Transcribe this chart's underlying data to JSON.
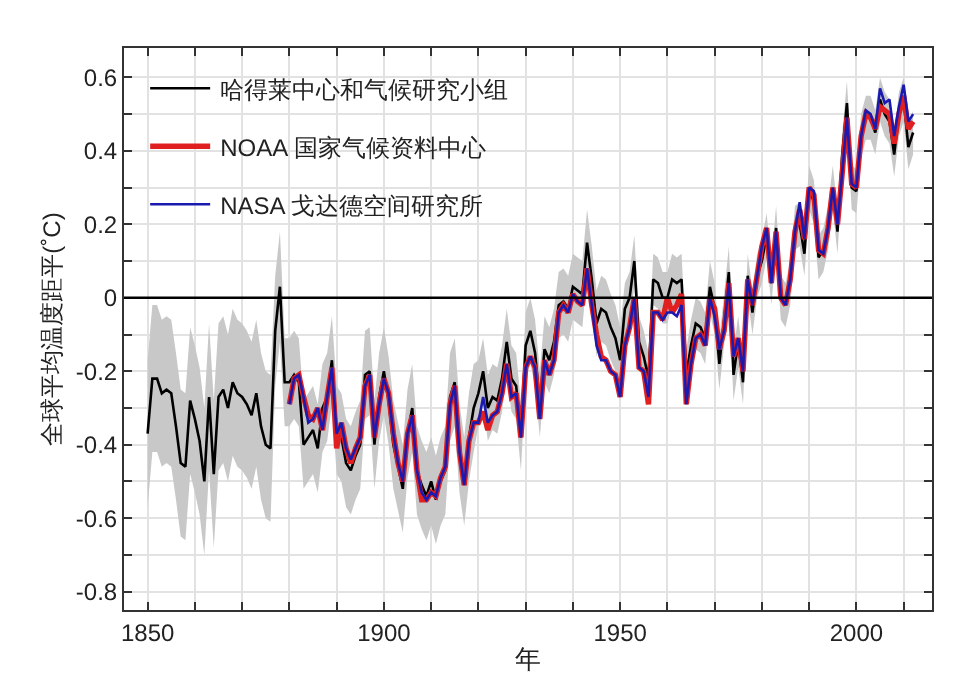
{
  "chart_data": {
    "type": "line",
    "xlabel": "年",
    "ylabel": "全球平均温度距平(˚C)",
    "x": [
      1850,
      1851,
      1852,
      1853,
      1854,
      1855,
      1856,
      1857,
      1858,
      1859,
      1860,
      1861,
      1862,
      1863,
      1864,
      1865,
      1866,
      1867,
      1868,
      1869,
      1870,
      1871,
      1872,
      1873,
      1874,
      1875,
      1876,
      1877,
      1878,
      1879,
      1880,
      1881,
      1882,
      1883,
      1884,
      1885,
      1886,
      1887,
      1888,
      1889,
      1890,
      1891,
      1892,
      1893,
      1894,
      1895,
      1896,
      1897,
      1898,
      1899,
      1900,
      1901,
      1902,
      1903,
      1904,
      1905,
      1906,
      1907,
      1908,
      1909,
      1910,
      1911,
      1912,
      1913,
      1914,
      1915,
      1916,
      1917,
      1918,
      1919,
      1920,
      1921,
      1922,
      1923,
      1924,
      1925,
      1926,
      1927,
      1928,
      1929,
      1930,
      1931,
      1932,
      1933,
      1934,
      1935,
      1936,
      1937,
      1938,
      1939,
      1940,
      1941,
      1942,
      1943,
      1944,
      1945,
      1946,
      1947,
      1948,
      1949,
      1950,
      1951,
      1952,
      1953,
      1954,
      1955,
      1956,
      1957,
      1958,
      1959,
      1960,
      1961,
      1962,
      1963,
      1964,
      1965,
      1966,
      1967,
      1968,
      1969,
      1970,
      1971,
      1972,
      1973,
      1974,
      1975,
      1976,
      1977,
      1978,
      1979,
      1980,
      1981,
      1982,
      1983,
      1984,
      1985,
      1986,
      1987,
      1988,
      1989,
      1990,
      1991,
      1992,
      1993,
      1994,
      1995,
      1996,
      1997,
      1998,
      1999,
      2000,
      2001,
      2002,
      2003,
      2004,
      2005,
      2006,
      2007,
      2008,
      2009,
      2010,
      2011,
      2012
    ],
    "series": [
      {
        "name": "哈得莱中心和气候研究小组",
        "color": "#000000",
        "values": [
          -0.37,
          -0.22,
          -0.22,
          -0.26,
          -0.25,
          -0.26,
          -0.35,
          -0.45,
          -0.46,
          -0.28,
          -0.33,
          -0.39,
          -0.5,
          -0.27,
          -0.48,
          -0.27,
          -0.25,
          -0.3,
          -0.23,
          -0.26,
          -0.27,
          -0.29,
          -0.32,
          -0.26,
          -0.35,
          -0.4,
          -0.41,
          -0.09,
          0.03,
          -0.23,
          -0.23,
          -0.21,
          -0.23,
          -0.4,
          -0.38,
          -0.36,
          -0.41,
          -0.3,
          -0.27,
          -0.17,
          -0.36,
          -0.38,
          -0.45,
          -0.47,
          -0.43,
          -0.4,
          -0.21,
          -0.2,
          -0.4,
          -0.27,
          -0.2,
          -0.28,
          -0.4,
          -0.46,
          -0.52,
          -0.37,
          -0.3,
          -0.47,
          -0.51,
          -0.54,
          -0.5,
          -0.55,
          -0.5,
          -0.47,
          -0.27,
          -0.23,
          -0.41,
          -0.5,
          -0.38,
          -0.3,
          -0.26,
          -0.2,
          -0.3,
          -0.27,
          -0.28,
          -0.22,
          -0.12,
          -0.22,
          -0.24,
          -0.38,
          -0.13,
          -0.09,
          -0.15,
          -0.29,
          -0.14,
          -0.17,
          -0.12,
          -0.02,
          -0.01,
          -0.03,
          0.03,
          0.02,
          0.01,
          0.15,
          0.05,
          -0.07,
          -0.03,
          -0.04,
          -0.08,
          -0.11,
          -0.17,
          -0.03,
          0.0,
          0.1,
          -0.12,
          -0.16,
          -0.22,
          0.05,
          0.04,
          0.0,
          0.0,
          0.05,
          0.04,
          0.05,
          -0.21,
          -0.13,
          -0.07,
          -0.08,
          -0.11,
          0.03,
          -0.03,
          -0.18,
          -0.06,
          0.07,
          -0.21,
          -0.12,
          -0.23,
          0.06,
          -0.04,
          0.06,
          0.1,
          0.17,
          0.04,
          0.19,
          0.0,
          -0.02,
          0.04,
          0.19,
          0.2,
          0.12,
          0.3,
          0.26,
          0.11,
          0.13,
          0.19,
          0.3,
          0.18,
          0.39,
          0.53,
          0.3,
          0.29,
          0.44,
          0.49,
          0.49,
          0.45,
          0.54,
          0.5,
          0.48,
          0.39,
          0.5,
          0.54,
          0.41,
          0.45
        ],
        "lower": [
          -0.57,
          -0.42,
          -0.42,
          -0.46,
          -0.45,
          -0.46,
          -0.55,
          -0.65,
          -0.66,
          -0.48,
          -0.53,
          -0.59,
          -0.7,
          -0.47,
          -0.68,
          -0.47,
          -0.45,
          -0.5,
          -0.43,
          -0.46,
          -0.47,
          -0.49,
          -0.52,
          -0.46,
          -0.55,
          -0.6,
          -0.61,
          -0.24,
          -0.12,
          -0.35,
          -0.35,
          -0.33,
          -0.35,
          -0.52,
          -0.5,
          -0.48,
          -0.53,
          -0.42,
          -0.39,
          -0.29,
          -0.48,
          -0.5,
          -0.57,
          -0.59,
          -0.55,
          -0.52,
          -0.33,
          -0.32,
          -0.52,
          -0.39,
          -0.32,
          -0.4,
          -0.52,
          -0.58,
          -0.64,
          -0.49,
          -0.42,
          -0.59,
          -0.63,
          -0.66,
          -0.62,
          -0.67,
          -0.62,
          -0.59,
          -0.39,
          -0.35,
          -0.53,
          -0.62,
          -0.5,
          -0.42,
          -0.35,
          -0.29,
          -0.39,
          -0.36,
          -0.37,
          -0.31,
          -0.21,
          -0.31,
          -0.33,
          -0.47,
          -0.22,
          -0.18,
          -0.24,
          -0.38,
          -0.23,
          -0.26,
          -0.21,
          -0.11,
          -0.1,
          -0.12,
          -0.06,
          -0.07,
          -0.08,
          0.06,
          -0.04,
          -0.16,
          -0.12,
          -0.13,
          -0.17,
          -0.2,
          -0.26,
          -0.1,
          -0.07,
          0.03,
          -0.19,
          -0.23,
          -0.29,
          -0.02,
          -0.03,
          -0.07,
          -0.07,
          -0.02,
          -0.03,
          -0.02,
          -0.28,
          -0.2,
          -0.14,
          -0.15,
          -0.18,
          -0.04,
          -0.1,
          -0.25,
          -0.13,
          0.0,
          -0.28,
          -0.19,
          -0.29,
          0.0,
          -0.1,
          0.0,
          0.04,
          0.11,
          -0.02,
          0.13,
          -0.06,
          -0.08,
          -0.02,
          0.13,
          0.14,
          0.06,
          0.24,
          0.2,
          0.05,
          0.07,
          0.13,
          0.24,
          0.12,
          0.33,
          0.47,
          0.24,
          0.23,
          0.38,
          0.43,
          0.43,
          0.39,
          0.48,
          0.44,
          0.42,
          0.33,
          0.44,
          0.48,
          0.35,
          0.39
        ],
        "upper": [
          -0.17,
          -0.02,
          -0.02,
          -0.06,
          -0.05,
          -0.06,
          -0.15,
          -0.25,
          -0.26,
          -0.08,
          -0.13,
          -0.19,
          -0.3,
          -0.07,
          -0.28,
          -0.07,
          -0.05,
          -0.1,
          -0.03,
          -0.06,
          -0.07,
          -0.09,
          -0.12,
          -0.06,
          -0.15,
          -0.2,
          -0.21,
          0.06,
          0.18,
          -0.11,
          -0.11,
          -0.09,
          -0.11,
          -0.28,
          -0.26,
          -0.24,
          -0.29,
          -0.18,
          -0.15,
          -0.05,
          -0.24,
          -0.26,
          -0.33,
          -0.35,
          -0.31,
          -0.28,
          -0.09,
          -0.08,
          -0.28,
          -0.15,
          -0.08,
          -0.16,
          -0.28,
          -0.34,
          -0.4,
          -0.25,
          -0.18,
          -0.35,
          -0.39,
          -0.42,
          -0.38,
          -0.43,
          -0.38,
          -0.35,
          -0.15,
          -0.11,
          -0.29,
          -0.38,
          -0.26,
          -0.18,
          -0.17,
          -0.11,
          -0.21,
          -0.18,
          -0.19,
          -0.13,
          -0.03,
          -0.13,
          -0.15,
          -0.29,
          -0.04,
          0.0,
          -0.06,
          -0.2,
          -0.05,
          -0.08,
          -0.03,
          0.07,
          0.08,
          0.06,
          0.12,
          0.11,
          0.1,
          0.24,
          0.14,
          0.02,
          0.06,
          0.05,
          0.01,
          -0.02,
          -0.08,
          0.04,
          0.07,
          0.17,
          -0.05,
          -0.09,
          -0.15,
          0.12,
          0.11,
          0.07,
          0.07,
          0.12,
          0.11,
          0.12,
          -0.14,
          -0.06,
          0.0,
          -0.01,
          -0.04,
          0.1,
          0.04,
          -0.11,
          0.01,
          0.14,
          -0.14,
          -0.05,
          -0.17,
          0.12,
          0.02,
          0.12,
          0.16,
          0.23,
          0.1,
          0.25,
          0.06,
          0.04,
          0.1,
          0.25,
          0.26,
          0.18,
          0.36,
          0.32,
          0.17,
          0.19,
          0.25,
          0.36,
          0.24,
          0.45,
          0.59,
          0.36,
          0.35,
          0.5,
          0.55,
          0.55,
          0.51,
          0.6,
          0.56,
          0.54,
          0.45,
          0.56,
          0.6,
          0.47,
          0.51
        ]
      },
      {
        "name": "NOAA 国家气候资料中心",
        "color": "#e02020",
        "values": [
          null,
          null,
          null,
          null,
          null,
          null,
          null,
          null,
          null,
          null,
          null,
          null,
          null,
          null,
          null,
          null,
          null,
          null,
          null,
          null,
          null,
          null,
          null,
          null,
          null,
          null,
          null,
          null,
          null,
          null,
          -0.29,
          -0.22,
          -0.21,
          -0.27,
          -0.32,
          -0.33,
          -0.3,
          -0.36,
          -0.27,
          -0.19,
          -0.41,
          -0.34,
          -0.41,
          -0.45,
          -0.41,
          -0.38,
          -0.24,
          -0.21,
          -0.38,
          -0.29,
          -0.22,
          -0.26,
          -0.37,
          -0.45,
          -0.5,
          -0.37,
          -0.32,
          -0.47,
          -0.55,
          -0.55,
          -0.53,
          -0.54,
          -0.49,
          -0.46,
          -0.29,
          -0.24,
          -0.42,
          -0.51,
          -0.39,
          -0.34,
          -0.34,
          -0.31,
          -0.36,
          -0.32,
          -0.31,
          -0.26,
          -0.18,
          -0.27,
          -0.26,
          -0.38,
          -0.19,
          -0.16,
          -0.19,
          -0.33,
          -0.17,
          -0.21,
          -0.17,
          -0.04,
          -0.02,
          -0.04,
          0.01,
          -0.01,
          -0.02,
          0.08,
          -0.02,
          -0.1,
          -0.16,
          -0.17,
          -0.2,
          -0.21,
          -0.27,
          -0.13,
          -0.08,
          0.0,
          -0.19,
          -0.2,
          -0.29,
          -0.04,
          -0.04,
          -0.06,
          0.0,
          -0.04,
          -0.02,
          0.01,
          -0.29,
          -0.18,
          -0.11,
          -0.1,
          -0.13,
          0.0,
          -0.03,
          -0.14,
          -0.09,
          0.04,
          -0.16,
          -0.11,
          -0.2,
          0.05,
          -0.02,
          0.06,
          0.14,
          0.19,
          0.04,
          0.18,
          0.0,
          -0.02,
          0.05,
          0.18,
          0.24,
          0.16,
          0.3,
          0.28,
          0.13,
          0.12,
          0.19,
          0.3,
          0.2,
          0.34,
          0.49,
          0.31,
          0.3,
          0.44,
          0.5,
          0.49,
          0.46,
          0.52,
          0.51,
          0.5,
          0.42,
          0.5,
          0.55,
          0.46,
          0.48
        ]
      },
      {
        "name": "NASA 戈达德空间研究所",
        "color": "#1a1ab0",
        "values": [
          null,
          null,
          null,
          null,
          null,
          null,
          null,
          null,
          null,
          null,
          null,
          null,
          null,
          null,
          null,
          null,
          null,
          null,
          null,
          null,
          null,
          null,
          null,
          null,
          null,
          null,
          null,
          null,
          null,
          null,
          -0.29,
          -0.22,
          -0.21,
          -0.27,
          -0.34,
          -0.33,
          -0.3,
          -0.36,
          -0.27,
          -0.19,
          -0.37,
          -0.34,
          -0.41,
          -0.44,
          -0.41,
          -0.38,
          -0.24,
          -0.21,
          -0.38,
          -0.29,
          -0.22,
          -0.26,
          -0.37,
          -0.45,
          -0.5,
          -0.37,
          -0.32,
          -0.47,
          -0.53,
          -0.55,
          -0.53,
          -0.54,
          -0.49,
          -0.46,
          -0.29,
          -0.24,
          -0.42,
          -0.51,
          -0.39,
          -0.34,
          -0.34,
          -0.27,
          -0.34,
          -0.32,
          -0.31,
          -0.26,
          -0.18,
          -0.27,
          -0.26,
          -0.38,
          -0.19,
          -0.16,
          -0.19,
          -0.33,
          -0.17,
          -0.21,
          -0.17,
          -0.04,
          -0.02,
          -0.04,
          0.01,
          -0.01,
          -0.02,
          0.08,
          -0.02,
          -0.13,
          -0.17,
          -0.17,
          -0.2,
          -0.21,
          -0.27,
          -0.13,
          -0.08,
          0.0,
          -0.19,
          -0.2,
          -0.27,
          -0.04,
          -0.04,
          -0.06,
          -0.04,
          -0.04,
          -0.05,
          -0.02,
          -0.29,
          -0.18,
          -0.11,
          -0.1,
          -0.13,
          0.0,
          -0.05,
          -0.14,
          -0.09,
          0.04,
          -0.16,
          -0.11,
          -0.2,
          0.05,
          -0.02,
          0.06,
          0.14,
          0.19,
          0.04,
          0.18,
          0.0,
          -0.02,
          0.05,
          0.18,
          0.26,
          0.16,
          0.3,
          0.29,
          0.13,
          0.12,
          0.19,
          0.3,
          0.2,
          0.34,
          0.49,
          0.31,
          0.3,
          0.44,
          0.51,
          0.5,
          0.46,
          0.57,
          0.53,
          0.54,
          0.44,
          0.52,
          0.58,
          0.48,
          0.5
        ]
      }
    ],
    "xlim": [
      1845,
      2016
    ],
    "xticks": [
      1850,
      {
        "value": 1860,
        "label": null
      },
      {
        "value": 1870,
        "label": null
      },
      {
        "value": 1880,
        "label": null
      },
      {
        "value": 1890,
        "label": null
      },
      1900,
      {
        "value": 1910,
        "label": null
      },
      {
        "value": 1920,
        "label": null
      },
      {
        "value": 1930,
        "label": null
      },
      {
        "value": 1940,
        "label": null
      },
      1950,
      {
        "value": 1960,
        "label": null
      },
      {
        "value": 1970,
        "label": null
      },
      {
        "value": 1980,
        "label": null
      },
      {
        "value": 1990,
        "label": null
      },
      2000,
      {
        "value": 2010,
        "label": null
      }
    ],
    "ylim": [
      -0.85,
      0.68
    ],
    "yticks": [
      -0.8,
      {
        "value": -0.7,
        "label": null
      },
      -0.6,
      {
        "value": -0.5,
        "label": null
      },
      -0.4,
      {
        "value": -0.3,
        "label": null
      },
      -0.2,
      {
        "value": -0.1,
        "label": null
      },
      0,
      {
        "value": 0.1,
        "label": null
      },
      0.2,
      {
        "value": 0.3,
        "label": null
      },
      0.4,
      {
        "value": 0.5,
        "label": null
      },
      0.6
    ],
    "ref_lines": [
      {
        "axis": "y",
        "value": 0,
        "color": "#000000"
      }
    ],
    "grid": true,
    "legend": "top left",
    "marker": "none",
    "line_style": "solid"
  }
}
